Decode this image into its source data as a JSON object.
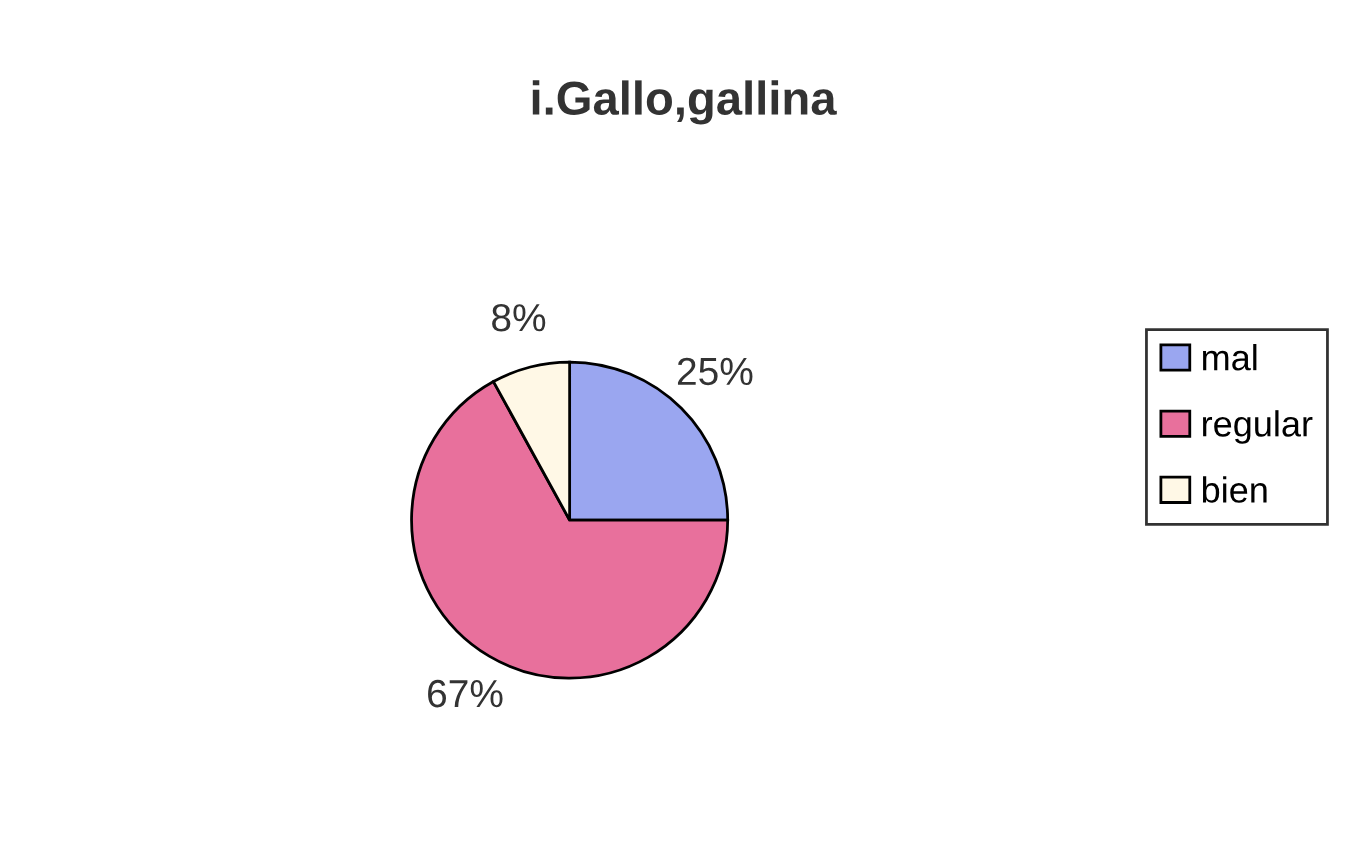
{
  "chart_data": {
    "type": "pie",
    "title": "i.Gallo,gallina",
    "categories": [
      "mal",
      "regular",
      "bien"
    ],
    "values": [
      25,
      67,
      8
    ],
    "colors": [
      "#9aa6f0",
      "#e8709c",
      "#fff8e6"
    ],
    "value_labels": [
      "25%",
      "67%",
      "8%"
    ],
    "legend": "right"
  }
}
